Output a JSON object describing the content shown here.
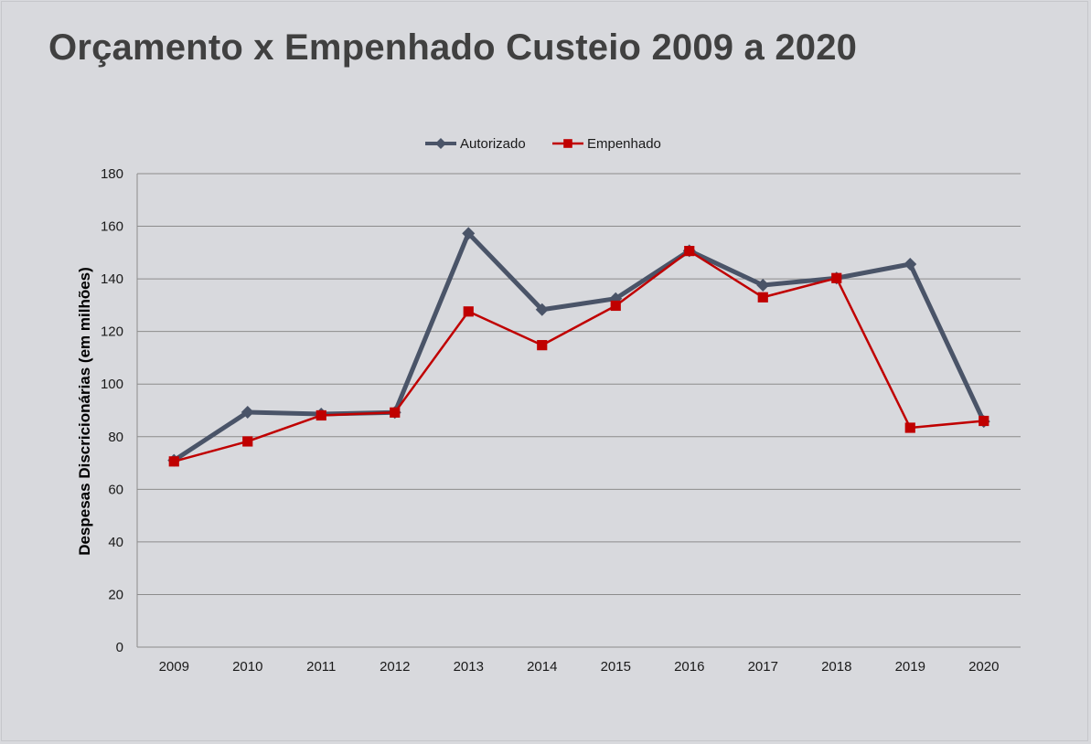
{
  "page": {
    "title": "Orçamento x Empenhado Custeio 2009 a 2020"
  },
  "chart_data": {
    "type": "line",
    "title": "Orçamento x Empenhado Custeio 2009 a 2020",
    "xlabel": "",
    "ylabel": "Despesas Discricionárias (em milhões)",
    "ylim": [
      0,
      180
    ],
    "yticks": [
      0,
      20,
      40,
      60,
      80,
      100,
      120,
      140,
      160,
      180
    ],
    "grid": true,
    "legend_position": "top-center",
    "categories": [
      "2009",
      "2010",
      "2011",
      "2012",
      "2013",
      "2014",
      "2015",
      "2016",
      "2017",
      "2018",
      "2019",
      "2020"
    ],
    "series": [
      {
        "name": "Autorizado",
        "color": "#4a5468",
        "marker": "diamond",
        "values": [
          71,
          89.3,
          88.6,
          89.2,
          157.3,
          128.3,
          132.5,
          150.7,
          137.6,
          140.3,
          145.6,
          85.8
        ]
      },
      {
        "name": "Empenhado",
        "color": "#c00000",
        "marker": "square",
        "values": [
          70.6,
          78.2,
          88.1,
          89.2,
          127.6,
          114.8,
          129.8,
          150.6,
          133.0,
          140.3,
          83.4,
          86.0
        ]
      }
    ]
  }
}
